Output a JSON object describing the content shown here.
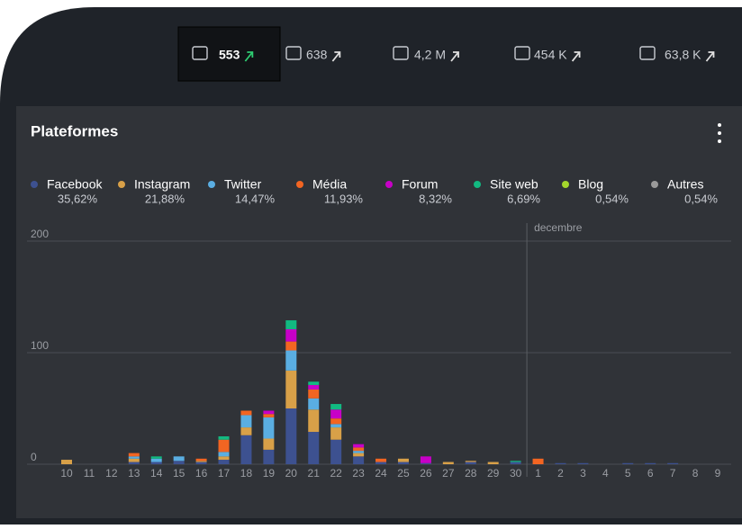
{
  "header": {
    "stats": [
      "553",
      "638",
      "4,2 M",
      "454 K",
      "63,8 K"
    ]
  },
  "chart_data": {
    "type": "bar",
    "stacked": true,
    "title": "Plateformes",
    "annotation": "decembre",
    "categories": [
      "10",
      "11",
      "12",
      "13",
      "14",
      "15",
      "16",
      "17",
      "18",
      "19",
      "20",
      "21",
      "22",
      "23",
      "24",
      "25",
      "26",
      "27",
      "28",
      "29",
      "30",
      "1",
      "2",
      "3",
      "4",
      "5",
      "6",
      "7",
      "8",
      "9"
    ],
    "series": [
      {
        "name": "Facebook",
        "share": "35,62%",
        "color": "#3d5190",
        "values": [
          0,
          0,
          0,
          2,
          2,
          3,
          2,
          4,
          26,
          13,
          50,
          29,
          22,
          7,
          2,
          2,
          1,
          0,
          2,
          0,
          2,
          0,
          1,
          1,
          0,
          1,
          1,
          1,
          0,
          0
        ]
      },
      {
        "name": "Instagram",
        "share": "21,88%",
        "color": "#d8a048",
        "values": [
          4,
          0,
          0,
          3,
          0,
          0,
          1,
          3,
          7,
          10,
          34,
          20,
          11,
          3,
          0,
          3,
          0,
          2,
          1,
          2,
          0,
          0,
          0,
          0,
          0,
          0,
          0,
          0,
          0,
          0
        ]
      },
      {
        "name": "Twitter",
        "share": "14,47%",
        "color": "#5aaee2",
        "values": [
          0,
          0,
          0,
          2,
          3,
          4,
          0,
          4,
          11,
          19,
          18,
          10,
          3,
          2,
          0,
          0,
          0,
          0,
          0,
          0,
          0,
          0,
          0,
          0,
          0,
          0,
          0,
          0,
          0,
          0
        ]
      },
      {
        "name": "Média",
        "share": "11,93%",
        "color": "#f26522",
        "values": [
          0,
          0,
          0,
          3,
          0,
          0,
          2,
          11,
          4,
          3,
          8,
          8,
          5,
          3,
          3,
          0,
          0,
          0,
          0,
          0,
          0,
          5,
          0,
          0,
          0,
          0,
          0,
          0,
          0,
          0
        ]
      },
      {
        "name": "Forum",
        "share": "8,32%",
        "color": "#c700c7",
        "values": [
          0,
          0,
          0,
          0,
          0,
          0,
          0,
          0,
          0,
          3,
          11,
          4,
          8,
          3,
          0,
          0,
          6,
          0,
          0,
          0,
          0,
          0,
          0,
          0,
          0,
          0,
          0,
          0,
          0,
          0
        ]
      },
      {
        "name": "Site web",
        "share": "6,69%",
        "color": "#12b981",
        "values": [
          0,
          0,
          0,
          0,
          2,
          0,
          0,
          3,
          0,
          0,
          8,
          3,
          5,
          0,
          0,
          0,
          0,
          0,
          0,
          0,
          1,
          0,
          0,
          0,
          0,
          0,
          0,
          0,
          0,
          0
        ]
      },
      {
        "name": "Blog",
        "share": "0,54%",
        "color": "#a4d62c",
        "values": [
          0,
          0,
          0,
          0,
          0,
          0,
          0,
          0,
          0,
          0,
          0,
          0,
          0,
          0,
          0,
          0,
          0,
          0,
          0,
          0,
          0,
          0,
          0,
          0,
          0,
          0,
          0,
          0,
          0,
          0
        ]
      },
      {
        "name": "Autres",
        "share": "0,54%",
        "color": "#9a9a9a",
        "values": [
          0,
          0,
          0,
          0,
          0,
          0,
          0,
          0,
          0,
          0,
          0,
          0,
          0,
          0,
          0,
          0,
          0,
          0,
          0,
          0,
          0,
          0,
          0,
          0,
          0,
          0,
          0,
          0,
          0,
          0
        ]
      }
    ],
    "ylim": [
      0,
      200
    ],
    "yticks": [
      0,
      100,
      200
    ],
    "grid": true
  }
}
